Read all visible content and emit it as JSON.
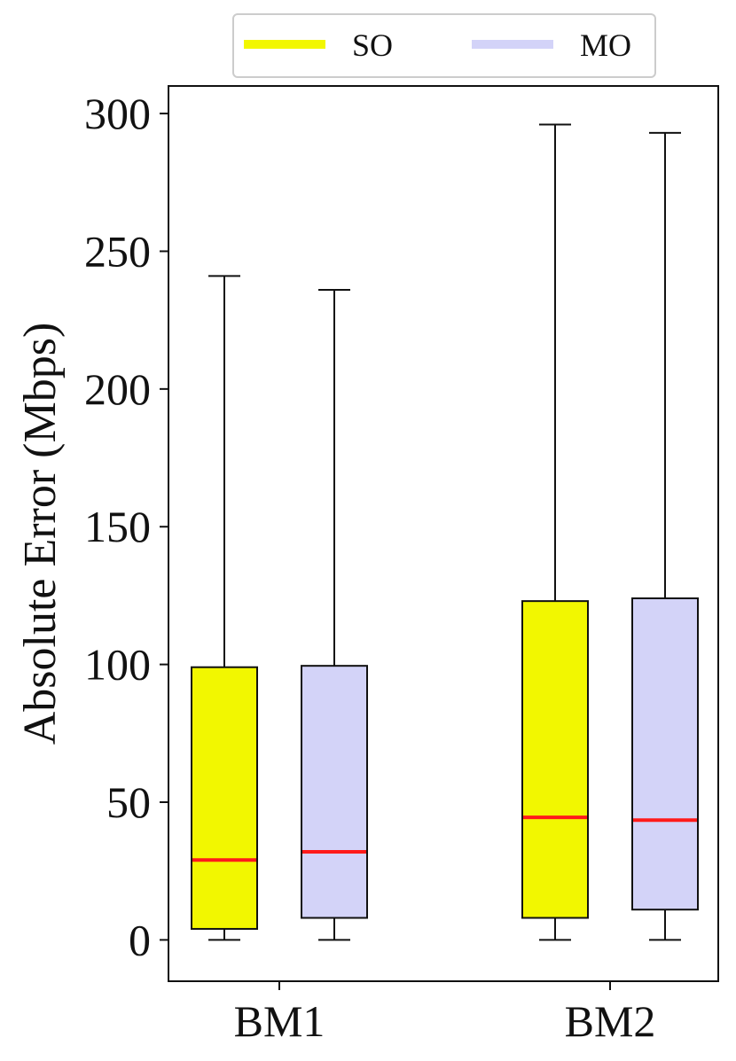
{
  "chart_data": {
    "type": "box",
    "ylabel": "Absolute Error (Mbps)",
    "xlabel": "",
    "ylim": [
      -15,
      310
    ],
    "y_ticks": [
      0,
      50,
      100,
      150,
      200,
      250,
      300
    ],
    "categories": [
      "BM1",
      "BM2"
    ],
    "legend": {
      "position": "top-center, outside plot"
    },
    "series": [
      {
        "name": "SO",
        "color": "#f2f700",
        "boxes": [
          {
            "category": "BM1",
            "whisker_low": 0,
            "q1": 4,
            "median": 29,
            "q3": 99,
            "whisker_high": 241
          },
          {
            "category": "BM2",
            "whisker_low": 0,
            "q1": 8,
            "median": 44.5,
            "q3": 123,
            "whisker_high": 296
          }
        ]
      },
      {
        "name": "MO",
        "color": "#d3d3f8",
        "boxes": [
          {
            "category": "BM1",
            "whisker_low": 0,
            "q1": 8,
            "median": 32,
            "q3": 99.5,
            "whisker_high": 236
          },
          {
            "category": "BM2",
            "whisker_low": 0,
            "q1": 11,
            "median": 43.5,
            "q3": 124,
            "whisker_high": 293
          }
        ]
      }
    ],
    "median_color": "#ff1a1a",
    "grid": false
  }
}
